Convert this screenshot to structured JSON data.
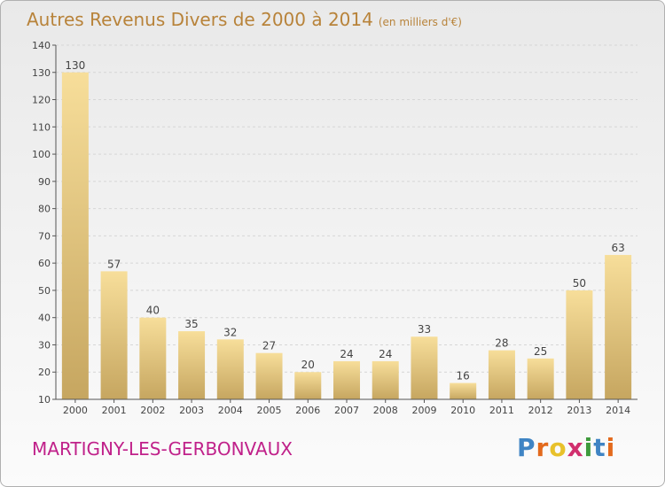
{
  "title": {
    "main": "Autres Revenus Divers de 2000 à 2014",
    "unit": "(en milliers d'€)"
  },
  "footer": {
    "town": "MARTIGNY-LES-GERBONVAUX"
  },
  "logo": {
    "letters": [
      "P",
      "r",
      "o",
      "x",
      "i",
      "t",
      "i"
    ],
    "colors": [
      "#3f84c4",
      "#e36a1d",
      "#e8c12b",
      "#d12f6e",
      "#3f9a3c",
      "#3f84c4",
      "#e36a1d"
    ]
  },
  "colors": {
    "bar_top": "#f7de9a",
    "bar_bottom": "#c6a660",
    "grid": "#d6d6d6",
    "axis": "#555555",
    "title": "#b8833a",
    "town": "#c0218a"
  },
  "chart_data": {
    "type": "bar",
    "title": "Autres Revenus Divers de 2000 à 2014",
    "subtitle": "(en milliers d'€)",
    "categories": [
      "2000",
      "2001",
      "2002",
      "2003",
      "2004",
      "2005",
      "2006",
      "2007",
      "2008",
      "2009",
      "2010",
      "2011",
      "2012",
      "2013",
      "2014"
    ],
    "values": [
      130,
      57,
      40,
      35,
      32,
      27,
      20,
      24,
      24,
      33,
      16,
      28,
      25,
      50,
      63
    ],
    "ylim": [
      10,
      140
    ],
    "yticks": [
      10,
      20,
      30,
      40,
      50,
      60,
      70,
      80,
      90,
      100,
      110,
      120,
      130,
      140
    ],
    "grid": "horizontal-dashed",
    "legend": "none",
    "xlabel": "",
    "ylabel": ""
  }
}
